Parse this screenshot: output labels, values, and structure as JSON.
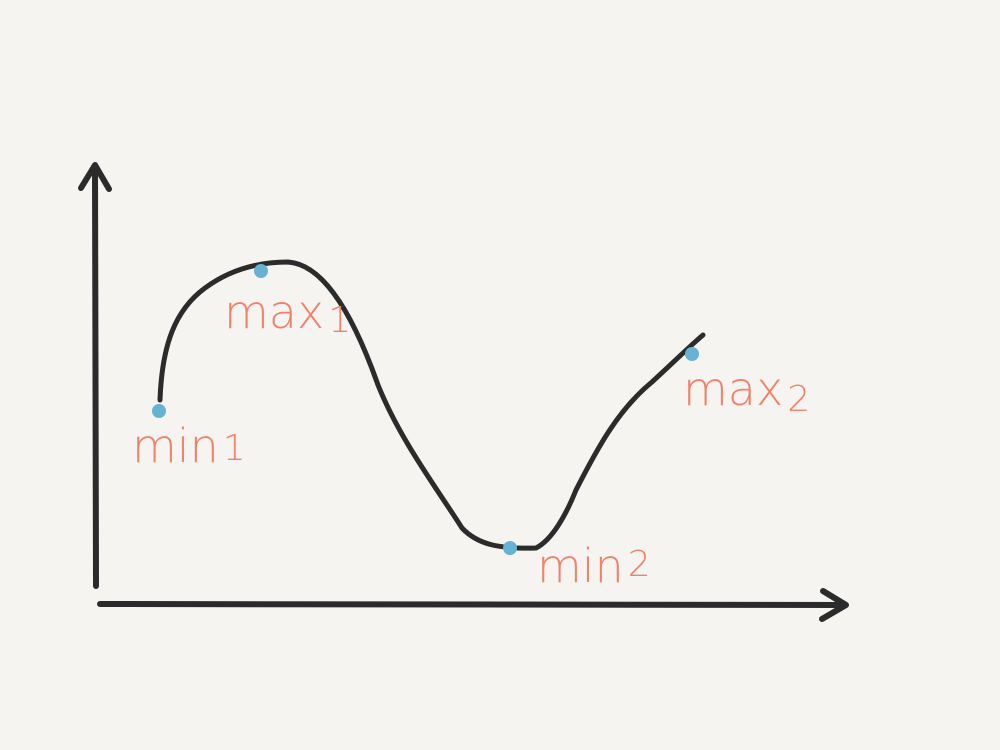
{
  "colors": {
    "background": "#f5f4f1",
    "axis": "#2b2b2b",
    "curve": "#2b2b2b",
    "point": "#67b2d2",
    "label": "#f0826a"
  },
  "points": [
    {
      "id": "min1",
      "label": "min",
      "sub": "1"
    },
    {
      "id": "max1",
      "label": "max",
      "sub": "1"
    },
    {
      "id": "min2",
      "label": "min",
      "sub": "2"
    },
    {
      "id": "max2",
      "label": "max",
      "sub": "2"
    }
  ]
}
